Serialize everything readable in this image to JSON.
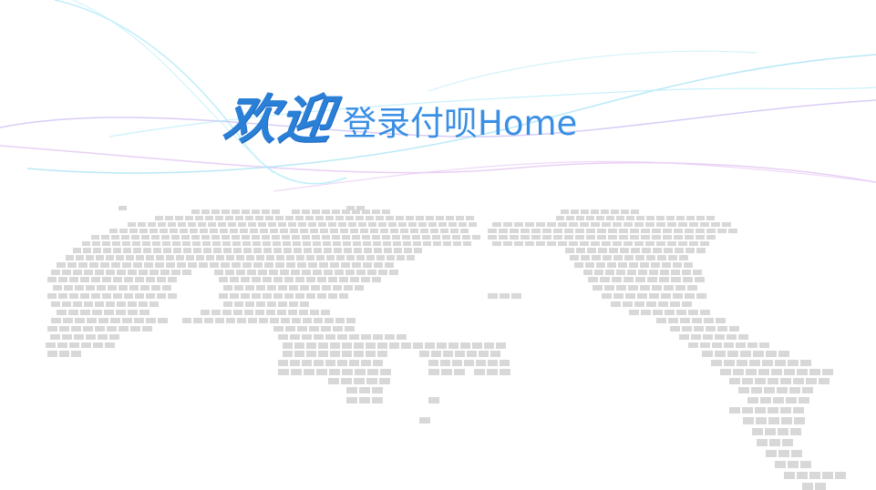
{
  "welcome": {
    "script_text": "欢迎",
    "subtitle": "登录付呗Home"
  },
  "colors": {
    "background": "#ffffff",
    "accent": "#2a7fd6",
    "subtitle": "#3a8fe4",
    "map_dots": "#d8d8d8",
    "wave_cyan": "#9fe3f3",
    "wave_violet": "#d9b6ee"
  },
  "icons": {
    "map": "world-map-dots"
  }
}
